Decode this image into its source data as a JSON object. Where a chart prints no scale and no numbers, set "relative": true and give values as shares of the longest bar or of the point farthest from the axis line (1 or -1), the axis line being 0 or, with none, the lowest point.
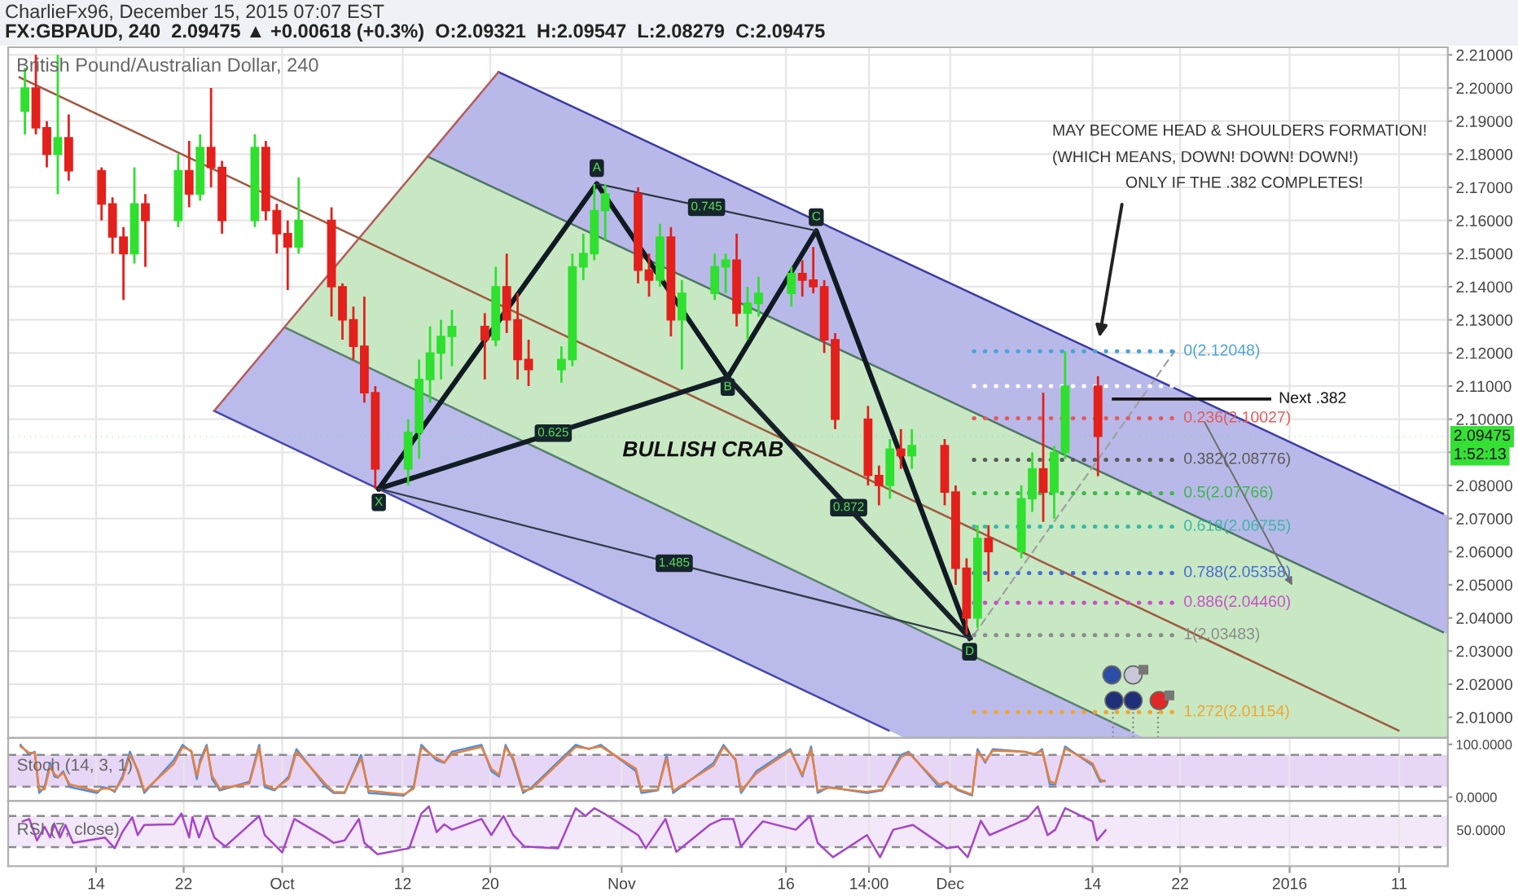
{
  "chart_data": [
    {
      "type": "candlestick",
      "title": "CharlieFx96, December 15, 2015 07:07 EST",
      "subtitle": "FX:GBPAUD, 240  2.09475 ▲ +0.00618 (+0.3%)  O:2.09321  H:2.09547  L:2.08279  C:2.09475",
      "x": [
        "2015-09-07T12:00",
        "2015-09-08T12:00",
        "2015-09-09T12:00",
        "2015-09-10T12:00",
        "2015-09-11T12:00",
        "2015-09-14T12:00",
        "2015-09-15T12:00",
        "2015-09-16T12:00",
        "2015-09-17T12:00",
        "2015-09-18T12:00",
        "2015-09-21T12:00",
        "2015-09-22T12:00",
        "2015-09-23T12:00",
        "2015-09-24T12:00",
        "2015-09-25T12:00",
        "2015-09-28T12:00",
        "2015-09-29T12:00",
        "2015-09-30T12:00",
        "2015-10-01T12:00",
        "2015-10-02T12:00",
        "2015-10-05T12:00",
        "2015-10-06T12:00",
        "2015-10-07T12:00",
        "2015-10-08T12:00",
        "2015-10-09T12:00",
        "2015-10-12T12:00",
        "2015-10-13T12:00",
        "2015-10-14T12:00",
        "2015-10-15T12:00",
        "2015-10-16T12:00",
        "2015-10-19T12:00",
        "2015-10-20T12:00",
        "2015-10-21T12:00",
        "2015-10-22T12:00",
        "2015-10-23T12:00",
        "2015-10-26T12:00",
        "2015-10-27T12:00",
        "2015-10-28T12:00",
        "2015-10-29T12:00",
        "2015-10-30T12:00",
        "2015-11-02T12:00",
        "2015-11-03T12:00",
        "2015-11-04T12:00",
        "2015-11-05T12:00",
        "2015-11-06T12:00",
        "2015-11-09T12:00",
        "2015-11-10T12:00",
        "2015-11-11T12:00",
        "2015-11-12T12:00",
        "2015-11-13T12:00",
        "2015-11-16T12:00",
        "2015-11-17T12:00",
        "2015-11-18T12:00",
        "2015-11-19T12:00",
        "2015-11-20T12:00",
        "2015-11-23T12:00",
        "2015-11-24T12:00",
        "2015-11-25T12:00",
        "2015-11-26T12:00",
        "2015-11-27T12:00",
        "2015-11-30T12:00",
        "2015-12-01T12:00",
        "2015-12-02T12:00",
        "2015-12-03T12:00",
        "2015-12-04T12:00",
        "2015-12-07T12:00",
        "2015-12-08T12:00",
        "2015-12-09T12:00",
        "2015-12-10T12:00",
        "2015-12-11T12:00",
        "2015-12-14T12:00"
      ],
      "ohlc": [
        [
          2.193,
          2.206,
          2.186,
          2.2
        ],
        [
          2.2,
          2.21,
          2.186,
          2.188
        ],
        [
          2.188,
          2.19,
          2.176,
          2.18
        ],
        [
          2.18,
          2.21,
          2.168,
          2.185
        ],
        [
          2.185,
          2.192,
          2.172,
          2.175
        ],
        [
          2.175,
          2.176,
          2.16,
          2.165
        ],
        [
          2.165,
          2.167,
          2.15,
          2.155
        ],
        [
          2.155,
          2.158,
          2.136,
          2.15
        ],
        [
          2.15,
          2.176,
          2.147,
          2.165
        ],
        [
          2.165,
          2.168,
          2.146,
          2.16
        ],
        [
          2.16,
          2.18,
          2.158,
          2.175
        ],
        [
          2.175,
          2.184,
          2.164,
          2.168
        ],
        [
          2.168,
          2.186,
          2.166,
          2.182
        ],
        [
          2.182,
          2.2,
          2.17,
          2.176
        ],
        [
          2.176,
          2.178,
          2.156,
          2.16
        ],
        [
          2.16,
          2.186,
          2.158,
          2.182
        ],
        [
          2.182,
          2.184,
          2.16,
          2.163
        ],
        [
          2.163,
          2.165,
          2.15,
          2.156
        ],
        [
          2.156,
          2.16,
          2.139,
          2.152
        ],
        [
          2.152,
          2.173,
          2.15,
          2.16
        ],
        [
          2.16,
          2.164,
          2.131,
          2.14
        ],
        [
          2.14,
          2.141,
          2.124,
          2.13
        ],
        [
          2.13,
          2.134,
          2.118,
          2.122
        ],
        [
          2.122,
          2.137,
          2.105,
          2.108
        ],
        [
          2.108,
          2.11,
          2.079,
          2.085
        ],
        [
          2.085,
          2.1,
          2.08,
          2.096
        ],
        [
          2.096,
          2.118,
          2.088,
          2.112
        ],
        [
          2.112,
          2.128,
          2.105,
          2.12
        ],
        [
          2.12,
          2.13,
          2.112,
          2.125
        ],
        [
          2.125,
          2.133,
          2.116,
          2.128
        ],
        [
          2.128,
          2.132,
          2.112,
          2.124
        ],
        [
          2.124,
          2.146,
          2.122,
          2.14
        ],
        [
          2.14,
          2.15,
          2.126,
          2.13
        ],
        [
          2.13,
          2.138,
          2.112,
          2.118
        ],
        [
          2.118,
          2.124,
          2.11,
          2.115
        ],
        [
          2.115,
          2.122,
          2.111,
          2.118
        ],
        [
          2.118,
          2.15,
          2.116,
          2.146
        ],
        [
          2.146,
          2.156,
          2.142,
          2.15
        ],
        [
          2.15,
          2.171,
          2.148,
          2.163
        ],
        [
          2.163,
          2.171,
          2.154,
          2.168
        ],
        [
          2.168,
          2.17,
          2.141,
          2.145
        ],
        [
          2.145,
          2.15,
          2.137,
          2.142
        ],
        [
          2.142,
          2.159,
          2.14,
          2.155
        ],
        [
          2.155,
          2.158,
          2.125,
          2.13
        ],
        [
          2.13,
          2.142,
          2.115,
          2.138
        ],
        [
          2.138,
          2.15,
          2.136,
          2.146
        ],
        [
          2.146,
          2.15,
          2.138,
          2.148
        ],
        [
          2.148,
          2.156,
          2.128,
          2.132
        ],
        [
          2.132,
          2.14,
          2.124,
          2.135
        ],
        [
          2.135,
          2.143,
          2.131,
          2.138
        ],
        [
          2.138,
          2.146,
          2.134,
          2.144
        ],
        [
          2.144,
          2.148,
          2.137,
          2.142
        ],
        [
          2.142,
          2.152,
          2.138,
          2.14
        ],
        [
          2.14,
          2.142,
          2.12,
          2.124
        ],
        [
          2.124,
          2.126,
          2.097,
          2.1
        ],
        [
          2.1,
          2.104,
          2.08,
          2.083
        ],
        [
          2.083,
          2.086,
          2.074,
          2.08
        ],
        [
          2.08,
          2.094,
          2.076,
          2.091
        ],
        [
          2.091,
          2.097,
          2.085,
          2.089
        ],
        [
          2.089,
          2.097,
          2.085,
          2.092
        ],
        [
          2.092,
          2.094,
          2.074,
          2.078
        ],
        [
          2.078,
          2.08,
          2.05,
          2.055
        ],
        [
          2.055,
          2.058,
          2.035,
          2.04
        ],
        [
          2.04,
          2.068,
          2.037,
          2.064
        ],
        [
          2.064,
          2.068,
          2.051,
          2.06
        ],
        [
          2.06,
          2.08,
          2.058,
          2.076
        ],
        [
          2.076,
          2.09,
          2.072,
          2.085
        ],
        [
          2.085,
          2.108,
          2.069,
          2.078
        ],
        [
          2.078,
          2.092,
          2.07,
          2.09
        ],
        [
          2.09,
          2.1205,
          2.088,
          2.11
        ],
        [
          2.11,
          2.113,
          2.0828,
          2.0948
        ]
      ],
      "series": [
        {
          "type": "line",
          "color": "#b9b9e9",
          "x": [
            "2015-10-14T06:30",
            "2015-10-20T18:00",
            "2016-01-15T10:45"
          ],
          "values": [
            null,
            null,
            null
          ],
          "lower": [
            2.1793,
            2.1693,
            2.035
          ],
          "upper": [
            2.1793,
            2.2048,
            2.0708
          ]
        },
        {
          "type": "line",
          "color": "#c7e8c3",
          "x": [
            "2015-10-01T05:20",
            "2015-10-14T06:30",
            "2015-12-18T18:00",
            "2016-01-15T10:45"
          ],
          "values": [
            null,
            null,
            null,
            null
          ],
          "lower": [
            2.1277,
            2.1071,
            2.0038,
            2.0038
          ],
          "upper": [
            2.1277,
            2.1793,
            2.0779,
            2.035
          ]
        },
        {
          "type": "line",
          "color": "#bbbbeb",
          "x": [
            "2015-09-24T18:40",
            "2015-10-01T05:20",
            "2015-11-26T19:10",
            "2015-12-18T18:00"
          ],
          "values": [
            null,
            null,
            null,
            null
          ],
          "lower": [
            2.1025,
            2.0924,
            2.0038,
            2.0038
          ],
          "upper": [
            2.1025,
            2.1277,
            2.0384,
            2.0038
          ]
        },
        {
          "type": "line",
          "color": "#3b3ba6",
          "x": [
            "2015-10-20T18:00",
            "2016-01-15T00:00"
          ],
          "values": [
            2.2048,
            2.0715
          ]
        },
        {
          "type": "line",
          "color": "#4f7563",
          "x": [
            "2015-10-14T06:30",
            "2016-01-15T00:00"
          ],
          "values": [
            2.1793,
            2.0357
          ]
        },
        {
          "type": "line",
          "color": "#5a806e",
          "x": [
            "2015-10-01T05:20",
            "2015-12-17T08:40"
          ],
          "values": [
            2.1277,
            2.006
          ]
        },
        {
          "type": "line",
          "color": "#4646b2",
          "x": [
            "2015-09-24T18:40",
            "2015-11-25T09:20"
          ],
          "values": [
            2.1025,
            2.006
          ]
        },
        {
          "type": "line",
          "color": "#b45a5a",
          "x": [
            "2015-09-24T18:40",
            "2015-10-20T18:00"
          ],
          "values": [
            2.1025,
            2.2048
          ]
        },
        {
          "type": "line",
          "color": "#a0583f",
          "x": [
            "2015-09-07T00:00",
            "2016-01-10T22:50"
          ],
          "values": [
            2.2032,
            2.006
          ]
        },
        {
          "type": "line",
          "color": "#0f1a22",
          "x": [
            "2015-10-09T19:40",
            "2015-10-29T17:30",
            "2015-11-10T16:30",
            "2015-11-18T18:30",
            "2015-12-02T18:40"
          ],
          "values": [
            2.079,
            2.1711,
            2.1126,
            2.1569,
            2.0339
          ]
        },
        {
          "type": "line",
          "color": "#121d26",
          "x": [
            "2015-10-09T19:40",
            "2015-11-10T16:30"
          ],
          "values": [
            2.079,
            2.1126
          ]
        },
        {
          "type": "line",
          "color": "#16212a",
          "x": [
            "2015-11-10T16:30",
            "2015-12-02T18:40"
          ],
          "values": [
            2.1126,
            2.0339
          ]
        },
        {
          "type": "line",
          "color": "#2a3440",
          "x": [
            "2015-10-29T17:30",
            "2015-11-18T18:30"
          ],
          "values": [
            2.1711,
            2.1569
          ]
        },
        {
          "type": "line",
          "color": "#303a46",
          "x": [
            "2015-10-09T19:40",
            "2015-12-02T18:40"
          ],
          "values": [
            2.079,
            2.0339
          ]
        },
        {
          "type": "line",
          "color": "#a0a0a0",
          "line_style": "dashed",
          "x": [
            "2015-12-03T04:00",
            "2015-12-21T11:45"
          ],
          "values": [
            2.03483,
            2.12048
          ]
        },
        {
          "type": "line",
          "name": "0(2.12048)",
          "color": "#4aa3d8",
          "line_style": "dotted",
          "x": [
            "2015-12-03T04:00",
            "2015-12-21T11:45"
          ],
          "values": [
            2.12048,
            2.12048
          ]
        },
        {
          "type": "line",
          "color": "#ffffff",
          "line_style": "dotted",
          "x": [
            "2015-12-03T04:00",
            "2015-12-21T11:45"
          ],
          "values": [
            2.11,
            2.11
          ]
        },
        {
          "type": "line",
          "name": "0.236(2.10027)",
          "color": "#e25a5a",
          "line_style": "dotted",
          "x": [
            "2015-12-03T04:00",
            "2015-12-21T11:45"
          ],
          "values": [
            2.10027,
            2.10027
          ]
        },
        {
          "type": "line",
          "name": "0.382(2.08776)",
          "color": "#5a5a5a",
          "line_style": "dotted",
          "x": [
            "2015-12-03T04:00",
            "2015-12-21T11:45"
          ],
          "values": [
            2.08776,
            2.08776
          ]
        },
        {
          "type": "line",
          "name": "0.5(2.07766)",
          "color": "#3db64a",
          "line_style": "dotted",
          "x": [
            "2015-12-03T04:00",
            "2015-12-21T11:45"
          ],
          "values": [
            2.07766,
            2.07766
          ]
        },
        {
          "type": "line",
          "name": "0.618(2.06755)",
          "color": "#39b8a6",
          "line_style": "dotted",
          "x": [
            "2015-12-03T04:00",
            "2015-12-21T11:45"
          ],
          "values": [
            2.06755,
            2.06755
          ]
        },
        {
          "type": "line",
          "name": "0.788(2.05358)",
          "color": "#4a6ccf",
          "line_style": "dotted",
          "x": [
            "2015-12-03T04:00",
            "2015-12-21T11:45"
          ],
          "values": [
            2.05358,
            2.05358
          ]
        },
        {
          "type": "line",
          "name": "0.886(2.04460)",
          "color": "#c94fc9",
          "line_style": "dotted",
          "x": [
            "2015-12-03T04:00",
            "2015-12-21T11:45"
          ],
          "values": [
            2.0446,
            2.0446
          ]
        },
        {
          "type": "line",
          "name": "1(2.03483)",
          "color": "#8c8c8c",
          "line_style": "dotted",
          "x": [
            "2015-12-03T04:00",
            "2015-12-21T11:45"
          ],
          "values": [
            2.03483,
            2.03483
          ]
        },
        {
          "type": "line",
          "name": "1.272(2.01154)",
          "color": "#f2a42c",
          "line_style": "dotted",
          "x": [
            "2015-12-03T04:00",
            "2015-12-21T11:45"
          ],
          "values": [
            2.01154,
            2.01154
          ]
        },
        {
          "type": "line",
          "name": "Next .382",
          "color": "#151515",
          "x": [
            "2015-12-15T21:50",
            "2015-12-30T04:20"
          ],
          "values": [
            2.1061,
            2.1061
          ]
        }
      ],
      "annotations": [
        "British Pound/Australian Dollar, 240",
        "MAY BECOME HEAD & SHOULDERS FORMATION!",
        "(WHICH MEANS, DOWN! DOWN! DOWN!)",
        "ONLY IF THE .382 COMPLETES!",
        {
          "text": "X",
          "x": "2015-10-09T19:40",
          "y": 2.0749
        },
        {
          "text": "A",
          "x": "2015-10-29T17:30",
          "y": 2.1758
        },
        {
          "text": "B",
          "x": "2015-11-10T16:30",
          "y": 2.1097
        },
        {
          "text": "C",
          "x": "2015-11-18T18:30",
          "y": 2.161
        },
        {
          "text": "D",
          "x": "2015-12-02T18:40",
          "y": 2.0298
        },
        {
          "text": "0.625",
          "x": "2015-10-25T18:00",
          "y": 2.0958
        },
        {
          "text": "0.745",
          "x": "2015-11-08T18:00",
          "y": 2.164
        },
        {
          "text": "0.872",
          "x": "2015-11-21T17:30",
          "y": 2.0733
        },
        {
          "text": "1.485",
          "x": "2015-11-05T19:10",
          "y": 2.0565
        },
        "BULLISH CRAB",
        "1:52:13"
      ],
      "ref_lines": [
        {
          "axis": "y",
          "value": 2.09475,
          "label": "2.09475",
          "color": "#35e035",
          "line_style": "dotted"
        }
      ],
      "xlim": [
        "2015-09-05T23:15",
        "2016-01-15T10:45"
      ],
      "ylim": [
        2.0038,
        2.2123
      ],
      "xticks": [
        {
          "value": "2015-09-14",
          "label": null
        },
        {
          "value": "2015-09-22",
          "label": null
        },
        {
          "value": "2015-10-01",
          "label": null
        },
        {
          "value": "2015-10-12",
          "label": null
        },
        {
          "value": "2015-10-20",
          "label": null
        },
        {
          "value": "2015-11-01",
          "label": null
        },
        {
          "value": "2015-11-16",
          "label": null
        },
        {
          "value": "2015-11-23T14:00",
          "label": null
        },
        {
          "value": "2015-12-01",
          "label": null
        },
        {
          "value": "2015-12-14",
          "label": null
        },
        {
          "value": "2015-12-22",
          "label": null
        },
        {
          "value": "2016-01-01",
          "label": null
        },
        {
          "value": "2016-01-11",
          "label": null
        }
      ],
      "yticks": [
        {
          "value": 2.01,
          "label": "2.01000"
        },
        {
          "value": 2.02,
          "label": "2.02000"
        },
        {
          "value": 2.03,
          "label": "2.03000"
        },
        {
          "value": 2.04,
          "label": "2.04000"
        },
        {
          "value": 2.05,
          "label": "2.05000"
        },
        {
          "value": 2.06,
          "label": "2.06000"
        },
        {
          "value": 2.07,
          "label": "2.07000"
        },
        {
          "value": 2.08,
          "label": "2.08000"
        },
        {
          "value": 2.09,
          "label": null
        },
        {
          "value": 2.1,
          "label": "2.10000"
        },
        {
          "value": 2.11,
          "label": "2.11000"
        },
        {
          "value": 2.12,
          "label": "2.12000"
        },
        {
          "value": 2.13,
          "label": "2.13000"
        },
        {
          "value": 2.14,
          "label": "2.14000"
        },
        {
          "value": 2.15,
          "label": "2.15000"
        },
        {
          "value": 2.16,
          "label": "2.16000"
        },
        {
          "value": 2.17,
          "label": "2.17000"
        },
        {
          "value": 2.18,
          "label": "2.18000"
        },
        {
          "value": 2.19,
          "label": "2.19000"
        },
        {
          "value": 2.2,
          "label": "2.20000"
        },
        {
          "value": 2.21,
          "label": "2.21000"
        }
      ],
      "tick_labels": "y",
      "grid": true
    },
    {
      "type": "line",
      "title": "Stoch (14, 3, 1)",
      "series": [
        {
          "color": "#4a8fe0",
          "x": [
            "2015-09-07T02:24",
            "2015-09-07T21:36",
            "2015-09-08T09:36",
            "2015-09-08T19:12",
            "2015-09-09T07:12",
            "2015-09-09T19:12",
            "2015-09-10T04:48",
            "2015-09-10T12:00",
            "2015-09-11T00:00",
            "2015-09-11T14:24",
            "2015-09-14T02:24",
            "2015-09-14T14:24",
            "2015-09-15T04:48",
            "2015-09-15T16:48",
            "2015-09-16T09:36",
            "2015-09-17T02:24",
            "2015-09-17T19:12",
            "2015-09-18T09:36",
            "2015-09-21T02:24",
            "2015-09-21T21:36",
            "2015-09-22T16:48",
            "2015-09-23T04:48",
            "2015-09-23T12:00",
            "2015-09-24T02:24",
            "2015-09-24T14:24",
            "2015-09-25T07:12",
            "2015-09-28T00:00",
            "2015-09-28T21:36",
            "2015-09-29T09:36",
            "2015-09-30T07:12",
            "2015-10-01T14:24",
            "2015-10-02T07:12",
            "2015-10-05T00:00",
            "2015-10-05T16:48",
            "2015-10-06T16:48",
            "2015-10-08T04:48",
            "2015-10-08T21:36",
            "2015-10-12T02:24",
            "2015-10-13T00:00",
            "2015-10-13T16:48",
            "2015-10-15T02:24",
            "2015-10-15T19:12",
            "2015-10-16T12:00",
            "2015-10-19T04:48",
            "2015-10-20T02:24",
            "2015-10-20T19:12",
            "2015-10-21T09:36",
            "2015-10-22T02:24",
            "2015-10-23T00:00",
            "2015-10-23T19:12",
            "2015-10-27T19:12",
            "2015-10-29T00:00",
            "2015-10-30T02:24",
            "2015-11-02T07:12",
            "2015-11-02T19:12",
            "2015-11-04T07:12",
            "2015-11-05T02:24",
            "2015-11-05T16:48",
            "2015-11-09T09:36",
            "2015-11-10T07:12",
            "2015-11-11T09:36",
            "2015-11-11T21:36",
            "2015-11-13T07:12",
            "2015-11-16T09:36",
            "2015-11-17T12:00",
            "2015-11-18T07:12",
            "2015-11-18T21:36",
            "2015-11-19T21:36",
            "2015-11-23T09:36",
            "2015-11-24T19:12",
            "2015-11-26T12:00",
            "2015-11-27T04:48",
            "2015-11-30T00:00",
            "2015-11-30T16:48",
            "2015-12-01T16:48",
            "2015-12-03T00:00",
            "2015-12-03T12:00",
            "2015-12-04T04:48",
            "2015-12-04T21:36",
            "2015-12-07T19:12",
            "2015-12-08T16:48",
            "2015-12-09T09:36",
            "2015-12-10T02:24",
            "2015-12-10T14:24",
            "2015-12-11T12:00",
            "2015-12-14T00:00",
            "2015-12-14T16:48",
            "2015-12-15T02:24"
          ],
          "values": [
            99,
            80,
            86,
            8,
            19,
            65,
            39,
            37,
            49,
            19,
            8,
            19,
            16,
            10,
            39,
            86,
            49,
            8,
            70,
            99,
            86,
            34,
            70,
            99,
            34,
            13,
            29,
            99,
            19,
            13,
            39,
            91,
            19,
            8,
            8,
            80,
            8,
            3,
            19,
            99,
            70,
            65,
            86,
            99,
            49,
            39,
            99,
            70,
            8,
            19,
            99,
            91,
            99,
            49,
            8,
            13,
            80,
            8,
            65,
            99,
            70,
            8,
            49,
            91,
            39,
            96,
            8,
            19,
            8,
            13,
            80,
            86,
            19,
            29,
            13,
            3,
            91,
            65,
            91,
            86,
            80,
            91,
            24,
            24,
            96,
            60,
            29,
            31
          ]
        },
        {
          "color": "#e8803c",
          "x": [
            "2015-09-07T02:24",
            "2015-09-07T21:36",
            "2015-09-08T09:36",
            "2015-09-08T19:12",
            "2015-09-09T07:12",
            "2015-09-09T19:12",
            "2015-09-10T04:48",
            "2015-09-10T12:00",
            "2015-09-11T00:00",
            "2015-09-11T14:24",
            "2015-09-14T02:24",
            "2015-09-14T14:24",
            "2015-09-15T04:48",
            "2015-09-15T16:48",
            "2015-09-16T09:36",
            "2015-09-17T02:24",
            "2015-09-17T19:12",
            "2015-09-18T09:36",
            "2015-09-21T02:24",
            "2015-09-21T21:36",
            "2015-09-22T16:48",
            "2015-09-23T04:48",
            "2015-09-23T12:00",
            "2015-09-24T02:24",
            "2015-09-24T14:24",
            "2015-09-25T07:12",
            "2015-09-28T00:00",
            "2015-09-28T21:36",
            "2015-09-29T09:36",
            "2015-09-30T07:12",
            "2015-10-01T14:24",
            "2015-10-02T07:12",
            "2015-10-05T00:00",
            "2015-10-05T16:48",
            "2015-10-06T16:48",
            "2015-10-08T04:48",
            "2015-10-08T21:36",
            "2015-10-12T02:24",
            "2015-10-13T00:00",
            "2015-10-13T16:48",
            "2015-10-15T02:24",
            "2015-10-15T19:12",
            "2015-10-16T12:00",
            "2015-10-19T04:48",
            "2015-10-20T02:24",
            "2015-10-20T19:12",
            "2015-10-21T09:36",
            "2015-10-22T02:24",
            "2015-10-23T00:00",
            "2015-10-23T19:12",
            "2015-10-27T19:12",
            "2015-10-29T00:00",
            "2015-10-30T02:24",
            "2015-11-02T07:12",
            "2015-11-02T19:12",
            "2015-11-04T07:12",
            "2015-11-05T02:24",
            "2015-11-05T16:48",
            "2015-11-09T09:36",
            "2015-11-10T07:12",
            "2015-11-11T09:36",
            "2015-11-11T21:36",
            "2015-11-13T07:12",
            "2015-11-16T09:36",
            "2015-11-17T12:00",
            "2015-11-18T07:12",
            "2015-11-18T21:36",
            "2015-11-19T21:36",
            "2015-11-23T09:36",
            "2015-11-24T19:12",
            "2015-11-26T12:00",
            "2015-11-27T04:48",
            "2015-11-30T00:00",
            "2015-11-30T16:48",
            "2015-12-01T16:48",
            "2015-12-03T00:00",
            "2015-12-03T12:00",
            "2015-12-04T04:48",
            "2015-12-04T21:36",
            "2015-12-07T19:12",
            "2015-12-08T16:48",
            "2015-12-09T09:36",
            "2015-12-10T02:24",
            "2015-12-10T14:24",
            "2015-12-11T12:00",
            "2015-12-14T00:00",
            "2015-12-14T16:48",
            "2015-12-15T02:24"
          ],
          "values": [
            96,
            84,
            84,
            14,
            15,
            58,
            44,
            38,
            46,
            24,
            11,
            16,
            16,
            12,
            34,
            80,
            52,
            12,
            63,
            95,
            88,
            40,
            64,
            95,
            40,
            16,
            26,
            94,
            24,
            15,
            35,
            86,
            24,
            10,
            9,
            74,
            12,
            5,
            16,
            94,
            74,
            66,
            82,
            95,
            54,
            42,
            94,
            74,
            12,
            16,
            95,
            92,
            96,
            54,
            12,
            14,
            74,
            12,
            60,
            95,
            72,
            12,
            45,
            88,
            42,
            91,
            12,
            18,
            10,
            14,
            75,
            84,
            24,
            28,
            15,
            5,
            86,
            68,
            88,
            86,
            82,
            88,
            30,
            26,
            92,
            64,
            33,
            30
          ]
        }
      ],
      "bands": [
        {
          "axis": "y",
          "from": 20,
          "to": 80,
          "color": "#e8d6f6"
        }
      ],
      "ref_lines": [
        {
          "axis": "y",
          "value": 80,
          "color": "#8c8c8c",
          "line_style": "dashed"
        },
        {
          "axis": "y",
          "value": 20,
          "color": "#8c8c8c",
          "line_style": "dashed"
        }
      ],
      "xlim": [
        "2015-09-05T23:15",
        "2016-01-15T10:45"
      ],
      "ylim": [
        -7.4,
        112.4
      ],
      "xticks": [
        {
          "value": "2015-09-14",
          "label": null
        },
        {
          "value": "2015-09-22",
          "label": null
        },
        {
          "value": "2015-10-01",
          "label": null
        },
        {
          "value": "2015-10-12",
          "label": null
        },
        {
          "value": "2015-10-20",
          "label": null
        },
        {
          "value": "2015-11-01",
          "label": null
        },
        {
          "value": "2015-11-16",
          "label": null
        },
        {
          "value": "2015-11-23T14:00",
          "label": null
        },
        {
          "value": "2015-12-01",
          "label": null
        },
        {
          "value": "2015-12-14",
          "label": null
        },
        {
          "value": "2015-12-22",
          "label": null
        },
        {
          "value": "2016-01-01",
          "label": null
        },
        {
          "value": "2016-01-11",
          "label": null
        }
      ],
      "yticks": [
        {
          "value": 100,
          "label": "100.0000"
        },
        {
          "value": 0,
          "label": "0.0000"
        }
      ],
      "tick_labels": "y",
      "grid": "x"
    },
    {
      "type": "line",
      "title": "RSI (7, close)",
      "relative": true,
      "series": [
        {
          "color": "#a546c8",
          "x": [
            "2015-09-07T07:12",
            "2015-09-07T21:36",
            "2015-09-08T14:24",
            "2015-09-09T07:12",
            "2015-09-09T19:12",
            "2015-09-10T04:48",
            "2015-09-10T16:48",
            "2015-09-11T04:48",
            "2015-09-11T21:36",
            "2015-09-14T19:12",
            "2015-09-15T16:48",
            "2015-09-16T09:36",
            "2015-09-17T07:12",
            "2015-09-17T19:12",
            "2015-09-18T09:36",
            "2015-09-21T02:24",
            "2015-09-21T19:12",
            "2015-09-22T12:00",
            "2015-09-22T19:12",
            "2015-09-23T09:36",
            "2015-09-24T02:24",
            "2015-09-24T19:12",
            "2015-09-25T19:12",
            "2015-09-28T21:36",
            "2015-09-29T09:36",
            "2015-10-01T00:00",
            "2015-10-02T02:24",
            "2015-10-05T00:00",
            "2015-10-05T16:48",
            "2015-10-06T16:48",
            "2015-10-08T00:00",
            "2015-10-08T12:00",
            "2015-10-09T16:48",
            "2015-10-12T14:24",
            "2015-10-13T16:48",
            "2015-10-14T09:36",
            "2015-10-15T02:24",
            "2015-10-15T19:12",
            "2015-10-16T12:00",
            "2015-10-19T04:48",
            "2015-10-20T02:24",
            "2015-10-21T04:48",
            "2015-10-22T02:24",
            "2015-10-23T02:24",
            "2015-10-26T04:48",
            "2015-10-27T19:12",
            "2015-10-28T16:48",
            "2015-10-29T12:00",
            "2015-10-30T09:36",
            "2015-11-02T12:00",
            "2015-11-03T04:48",
            "2015-11-05T00:00",
            "2015-11-06T00:00",
            "2015-11-09T02:24",
            "2015-11-10T04:48",
            "2015-11-11T04:48",
            "2015-11-11T21:36",
            "2015-11-13T00:00",
            "2015-11-13T21:36",
            "2015-11-16T21:36",
            "2015-11-18T04:48",
            "2015-11-18T21:36",
            "2015-11-20T07:12",
            "2015-11-23T09:36",
            "2015-11-24T14:24",
            "2015-11-25T19:12",
            "2015-11-27T14:24",
            "2015-11-30T16:48",
            "2015-12-01T16:48",
            "2015-12-02T14:24",
            "2015-12-03T19:12",
            "2015-12-04T14:24",
            "2015-12-08T00:00",
            "2015-12-09T00:00",
            "2015-12-09T21:36",
            "2015-12-10T14:24",
            "2015-12-11T12:00",
            "2015-12-14T00:00",
            "2015-12-14T09:36",
            "2015-12-15T04:48"
          ],
          "values": [
            0.75,
            0.79,
            0.43,
            0.66,
            0.48,
            0.7,
            0.48,
            0.69,
            0.39,
            0.48,
            0.3,
            0.57,
            0.82,
            0.52,
            0.69,
            0.7,
            0.88,
            0.48,
            0.82,
            0.48,
            0.84,
            0.48,
            0.33,
            0.84,
            0.52,
            0.23,
            0.79,
            0.48,
            0.39,
            0.43,
            0.79,
            0.39,
            0.2,
            0.3,
            0.88,
            1,
            0.57,
            0.7,
            0.61,
            0.79,
            0.52,
            0.84,
            0.52,
            0.33,
            0.3,
            0.97,
            0.84,
            0.97,
            0.88,
            0.52,
            0.3,
            0.79,
            0.24,
            0.7,
            0.79,
            0.79,
            0.33,
            0.57,
            0.75,
            0.61,
            0.84,
            0.39,
            0.15,
            0.52,
            0.15,
            0.61,
            0.69,
            0.3,
            0.33,
            0.15,
            0.76,
            0.52,
            0.79,
            1,
            0.52,
            0.61,
            0.97,
            0.75,
            0.43,
            0.6
          ]
        }
      ],
      "bands": [
        {
          "axis": "y",
          "from": 0.32,
          "to": 0.84,
          "color": "#f3e8fa"
        }
      ],
      "ref_lines": [
        {
          "axis": "y",
          "value": 0.84,
          "color": "#8c8c8c",
          "line_style": "dashed"
        },
        {
          "axis": "y",
          "value": 0.32,
          "color": "#8c8c8c",
          "line_style": "dashed"
        }
      ],
      "annotations": [
        "50.0000"
      ],
      "xlim": [
        "2015-09-05T23:15",
        "2016-01-15T10:45"
      ],
      "xticks": [
        {
          "value": "2015-09-14",
          "label": "14"
        },
        {
          "value": "2015-09-22",
          "label": "22"
        },
        {
          "value": "2015-10-01",
          "label": "Oct"
        },
        {
          "value": "2015-10-12",
          "label": "12"
        },
        {
          "value": "2015-10-20",
          "label": "20"
        },
        {
          "value": "2015-11-01",
          "label": "Nov"
        },
        {
          "value": "2015-11-16",
          "label": "16"
        },
        {
          "value": "2015-11-23T14:00",
          "label": "14:00"
        },
        {
          "value": "2015-12-01",
          "label": "Dec"
        },
        {
          "value": "2015-12-14",
          "label": "14"
        },
        {
          "value": "2015-12-22",
          "label": "22"
        },
        {
          "value": "2016-01-01",
          "label": "2016"
        },
        {
          "value": "2016-01-11",
          "label": "11"
        }
      ],
      "grid": "x"
    }
  ]
}
